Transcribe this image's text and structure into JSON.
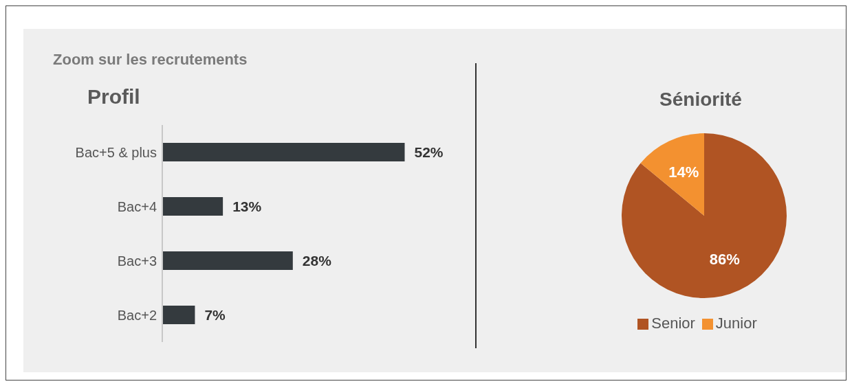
{
  "chart_data": [
    {
      "type": "bar",
      "title": "Zoom sur les recrutements",
      "subtitle": "Profil",
      "orientation": "horizontal",
      "categories": [
        "Bac+5 & plus",
        "Bac+4",
        "Bac+3",
        "Bac+2"
      ],
      "values": [
        52,
        13,
        28,
        7
      ],
      "color": "#343a3e",
      "value_labels": [
        "52%",
        "13%",
        "28%",
        "7%"
      ]
    },
    {
      "type": "pie",
      "title": "Séniorité",
      "categories": [
        "Senior",
        "Junior"
      ],
      "values": [
        86,
        14
      ],
      "colors": [
        "#b05423",
        "#f39130"
      ],
      "value_labels": [
        "86%",
        "14%"
      ],
      "legend": "bottom"
    }
  ]
}
